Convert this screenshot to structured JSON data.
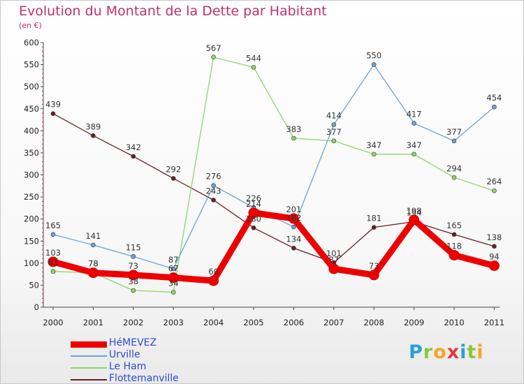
{
  "title": "Evolution du Montant de la Dette par Habitant",
  "subtitle": "(en €)",
  "logo": {
    "letters": [
      "P",
      "r",
      "o",
      "x",
      "i",
      "t",
      "i"
    ],
    "colors": [
      "#2a9fd8",
      "#8bc63f",
      "#f5a623",
      "#e53935",
      "#2a9fd8",
      "#8bc63f",
      "#f5a623"
    ]
  },
  "chart_data": {
    "type": "line",
    "x": [
      "2000",
      "2001",
      "2002",
      "2003",
      "2004",
      "2005",
      "2006",
      "2007",
      "2008",
      "2009",
      "2010",
      "2011"
    ],
    "ylim": [
      0,
      600
    ],
    "yticks": [
      0,
      50,
      100,
      150,
      200,
      250,
      300,
      350,
      400,
      450,
      500,
      550,
      600
    ],
    "grid": false,
    "legend_position": "bottom-left",
    "series": [
      {
        "name": "Flottemanville",
        "color": "#6b1e23",
        "values": [
          439,
          389,
          342,
          292,
          243,
          180,
          134,
          101,
          181,
          194,
          165,
          138
        ]
      },
      {
        "name": "Le Ham",
        "color": "#8fd46a",
        "values": [
          81,
          78,
          38,
          34,
          567,
          544,
          383,
          377,
          347,
          347,
          294,
          264
        ]
      },
      {
        "name": "Urville",
        "color": "#6aa4d6",
        "values": [
          165,
          141,
          115,
          87,
          276,
          226,
          182,
          414,
          550,
          417,
          377,
          454
        ]
      },
      {
        "name": "HéMEVEZ",
        "color": "#ee0000",
        "values": [
          103,
          78,
          73,
          67,
          60,
          214,
          201,
          87,
          73,
          198,
          118,
          94
        ]
      }
    ]
  }
}
